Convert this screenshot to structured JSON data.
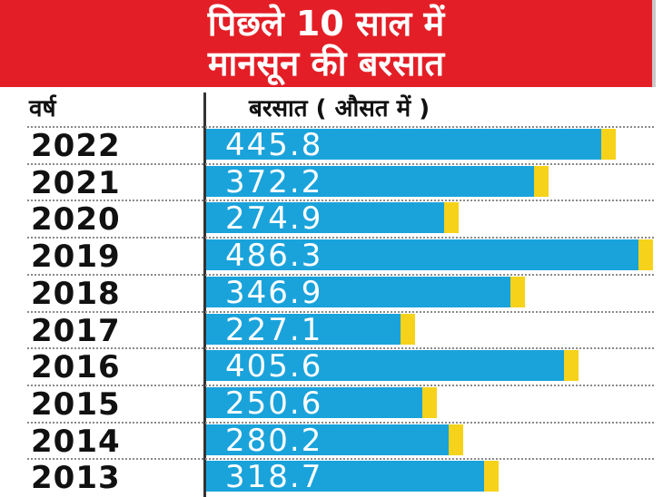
{
  "header": {
    "line1": "पिछले 10 साल में",
    "line2": "मानसून की बरसात"
  },
  "columns": {
    "year": "वर्ष",
    "rainfall": "बरसात ( औसत में )"
  },
  "colors": {
    "header_bg": "#e41e26",
    "bar": "#1aa3db",
    "bar_cap": "#f6d21a"
  },
  "chart_data": {
    "type": "bar",
    "orientation": "horizontal",
    "title": "पिछले 10 साल में मानसून की बरसात",
    "xlabel": "बरसात ( औसत में )",
    "ylabel": "वर्ष",
    "categories": [
      "2022",
      "2021",
      "2020",
      "2019",
      "2018",
      "2017",
      "2016",
      "2015",
      "2014",
      "2013"
    ],
    "values": [
      445.8,
      372.2,
      274.9,
      486.3,
      346.9,
      227.1,
      405.6,
      250.6,
      280.2,
      318.7
    ],
    "value_labels": [
      "445.8",
      "372.2",
      "274.9",
      "486.3",
      "346.9",
      "227.1",
      "405.6",
      "250.6",
      "280.2",
      "318.7"
    ],
    "xlim": [
      0,
      486.3
    ],
    "grid": false,
    "legend": "none"
  }
}
